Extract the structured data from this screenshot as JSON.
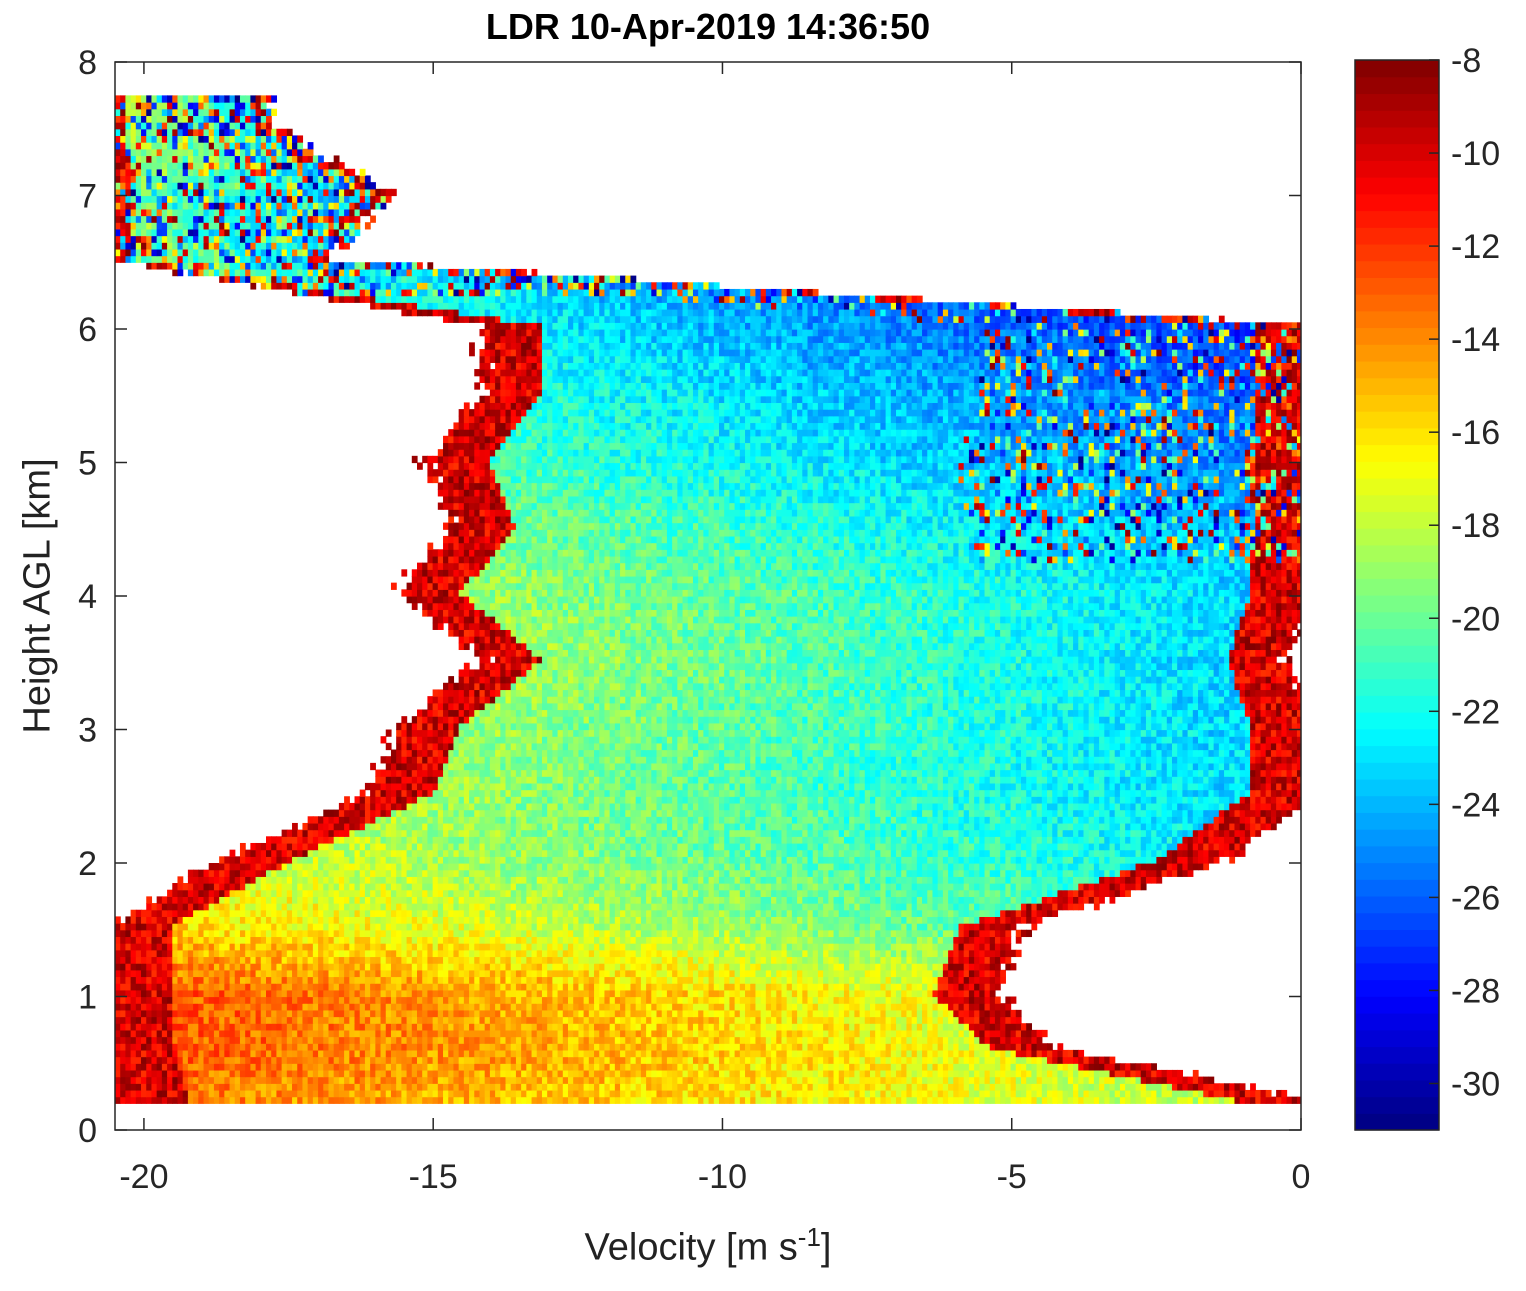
{
  "chart_data": {
    "type": "heatmap",
    "title": "LDR 10-Apr-2019 14:36:50",
    "xlabel_main": "Velocity [m s",
    "xlabel_sup": "-1",
    "xlabel_end": "]",
    "ylabel": "Height AGL [km]",
    "xlim": [
      -20.5,
      0
    ],
    "ylim": [
      0,
      8
    ],
    "xticks": [
      -20,
      -15,
      -10,
      -5,
      0
    ],
    "yticks": [
      0,
      1,
      2,
      3,
      4,
      5,
      6,
      7,
      8
    ],
    "colorbar": {
      "colormap": "jet",
      "clim": [
        -31,
        -8
      ],
      "ticks": [
        -8,
        -10,
        -12,
        -14,
        -16,
        -18,
        -20,
        -22,
        -24,
        -26,
        -28,
        -30
      ]
    },
    "height_bins_km": [
      0.2,
      0.6,
      1.0,
      1.5,
      2.0,
      2.5,
      3.0,
      3.5,
      4.0,
      4.5,
      5.0,
      5.5,
      6.0,
      6.5,
      7.0,
      7.5
    ],
    "echo_extent": [
      {
        "height": 0.2,
        "vmin": -20.5,
        "vmax": 0,
        "ldr": -16
      },
      {
        "height": 0.6,
        "vmin": -20.5,
        "vmax": -4.5,
        "ldr": -15
      },
      {
        "height": 1.0,
        "vmin": -20.5,
        "vmax": -5.5,
        "ldr": -15
      },
      {
        "height": 1.5,
        "vmin": -20.5,
        "vmax": -5.0,
        "ldr": -18
      },
      {
        "height": 2.0,
        "vmin": -18.5,
        "vmax": -1.5,
        "ldr": -20
      },
      {
        "height": 2.5,
        "vmin": -16.0,
        "vmax": 0,
        "ldr": -21
      },
      {
        "height": 3.0,
        "vmin": -15.5,
        "vmax": 0,
        "ldr": -21
      },
      {
        "height": 3.5,
        "vmin": -14.0,
        "vmax": -0.5,
        "ldr": -21
      },
      {
        "height": 4.0,
        "vmin": -15.5,
        "vmax": 0,
        "ldr": -21
      },
      {
        "height": 4.5,
        "vmin": -14.5,
        "vmax": 0,
        "ldr": -22
      },
      {
        "height": 5.0,
        "vmin": -15.0,
        "vmax": 0,
        "ldr": -23
      },
      {
        "height": 5.5,
        "vmin": -14.0,
        "vmax": 0,
        "ldr": -24
      },
      {
        "height": 6.0,
        "vmin": -14.0,
        "vmax": 0,
        "ldr": -25
      },
      {
        "height": 6.5,
        "vmin": -20.5,
        "vmax": -17.0,
        "ldr": -22
      },
      {
        "height": 7.0,
        "vmin": -20.5,
        "vmax": -16.0,
        "ldr": -22
      },
      {
        "height": 7.5,
        "vmin": -20.5,
        "vmax": -18.0,
        "ldr": -20
      }
    ]
  }
}
